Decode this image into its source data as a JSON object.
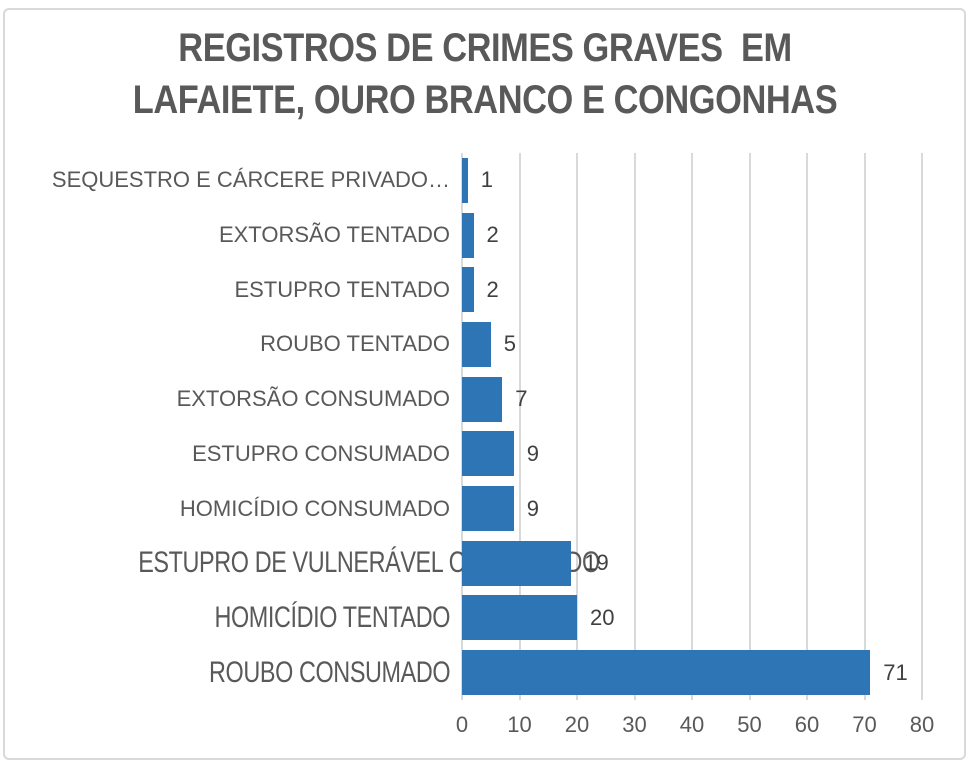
{
  "header": {
    "title_lines": [
      "REGISTROS DE CRIMES GRAVES  EM",
      "LAFAIETE, OURO BRANCO E CONGONHAS"
    ]
  },
  "chart_data": {
    "type": "bar",
    "orientation": "horizontal",
    "title": "REGISTROS DE CRIMES GRAVES  EM LAFAIETE, OURO BRANCO E CONGONHAS",
    "categories": [
      "SEQUESTRO E CÁRCERE PRIVADO…",
      "EXTORSÃO TENTADO",
      "ESTUPRO TENTADO",
      "ROUBO TENTADO",
      "EXTORSÃO CONSUMADO",
      "ESTUPRO CONSUMADO",
      "HOMICÍDIO CONSUMADO",
      "ESTUPRO DE VULNERÁVEL CONSUMADO",
      "HOMICÍDIO TENTADO",
      "ROUBO CONSUMADO"
    ],
    "values": [
      1,
      2,
      2,
      5,
      7,
      9,
      9,
      19,
      20,
      71
    ],
    "condensed_labels": [
      false,
      false,
      false,
      false,
      false,
      false,
      false,
      true,
      true,
      true
    ],
    "xlabel": "",
    "ylabel": "",
    "xlim": [
      0,
      80
    ],
    "xticks": [
      0,
      10,
      20,
      30,
      40,
      50,
      60,
      70,
      80
    ],
    "grid": "vertical",
    "legend": "none",
    "data_labels": true,
    "colors": {
      "bar": "#2E75B6",
      "category_label": "#595959",
      "value_label": "#404040",
      "tick_label": "#595959",
      "gridline": "#D9D9D9",
      "title": "#595959",
      "border": "#D9D9D9",
      "background": "#FFFFFF"
    }
  }
}
